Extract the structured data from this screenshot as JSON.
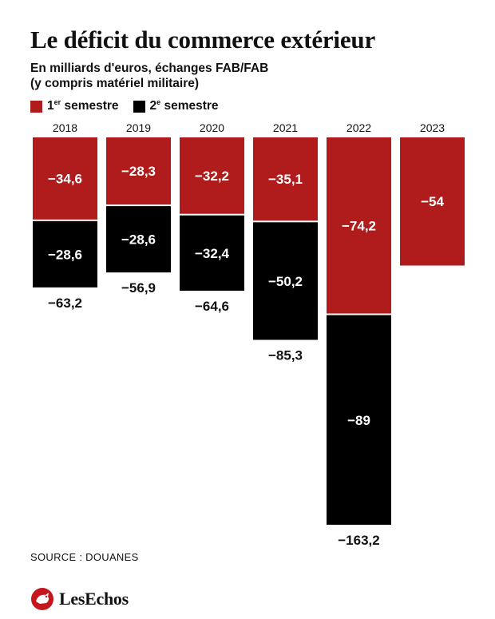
{
  "header": {
    "title": "Le déficit du commerce extérieur",
    "subtitle_line1": "En milliards d'euros, échanges FAB/FAB",
    "subtitle_line2": "(y compris matériel militaire)"
  },
  "legend": {
    "first_prefix": "1",
    "first_sup": "er",
    "first_suffix": " semestre",
    "second_prefix": "2",
    "second_sup": "e",
    "second_suffix": " semestre"
  },
  "colors": {
    "first": "#b01c1c",
    "second": "#000000",
    "gap": "#ffffff"
  },
  "chart_data": {
    "type": "bar",
    "stacked": true,
    "direction": "downward",
    "categories": [
      "2018",
      "2019",
      "2020",
      "2021",
      "2022",
      "2023"
    ],
    "series": [
      {
        "name": "1er semestre",
        "values": [
          -34.6,
          -28.3,
          -32.2,
          -35.1,
          -74.2,
          -54
        ],
        "labels": [
          "−34,6",
          "−28,3",
          "−32,2",
          "−35,1",
          "−74,2",
          "−54"
        ]
      },
      {
        "name": "2e semestre",
        "values": [
          -28.6,
          -28.6,
          -32.4,
          -50.2,
          -89,
          null
        ],
        "labels": [
          "−28,6",
          "−28,6",
          "−32,4",
          "−50,2",
          "−89",
          ""
        ]
      }
    ],
    "totals": [
      -63.2,
      -56.9,
      -64.6,
      -85.3,
      -163.2,
      null
    ],
    "total_labels": [
      "−63,2",
      "−56,9",
      "−64,6",
      "−85,3",
      "−163,2",
      ""
    ],
    "ylim": [
      -163.2,
      0
    ]
  },
  "footer": {
    "source": "SOURCE : DOUANES",
    "logo": "LesEchos"
  }
}
